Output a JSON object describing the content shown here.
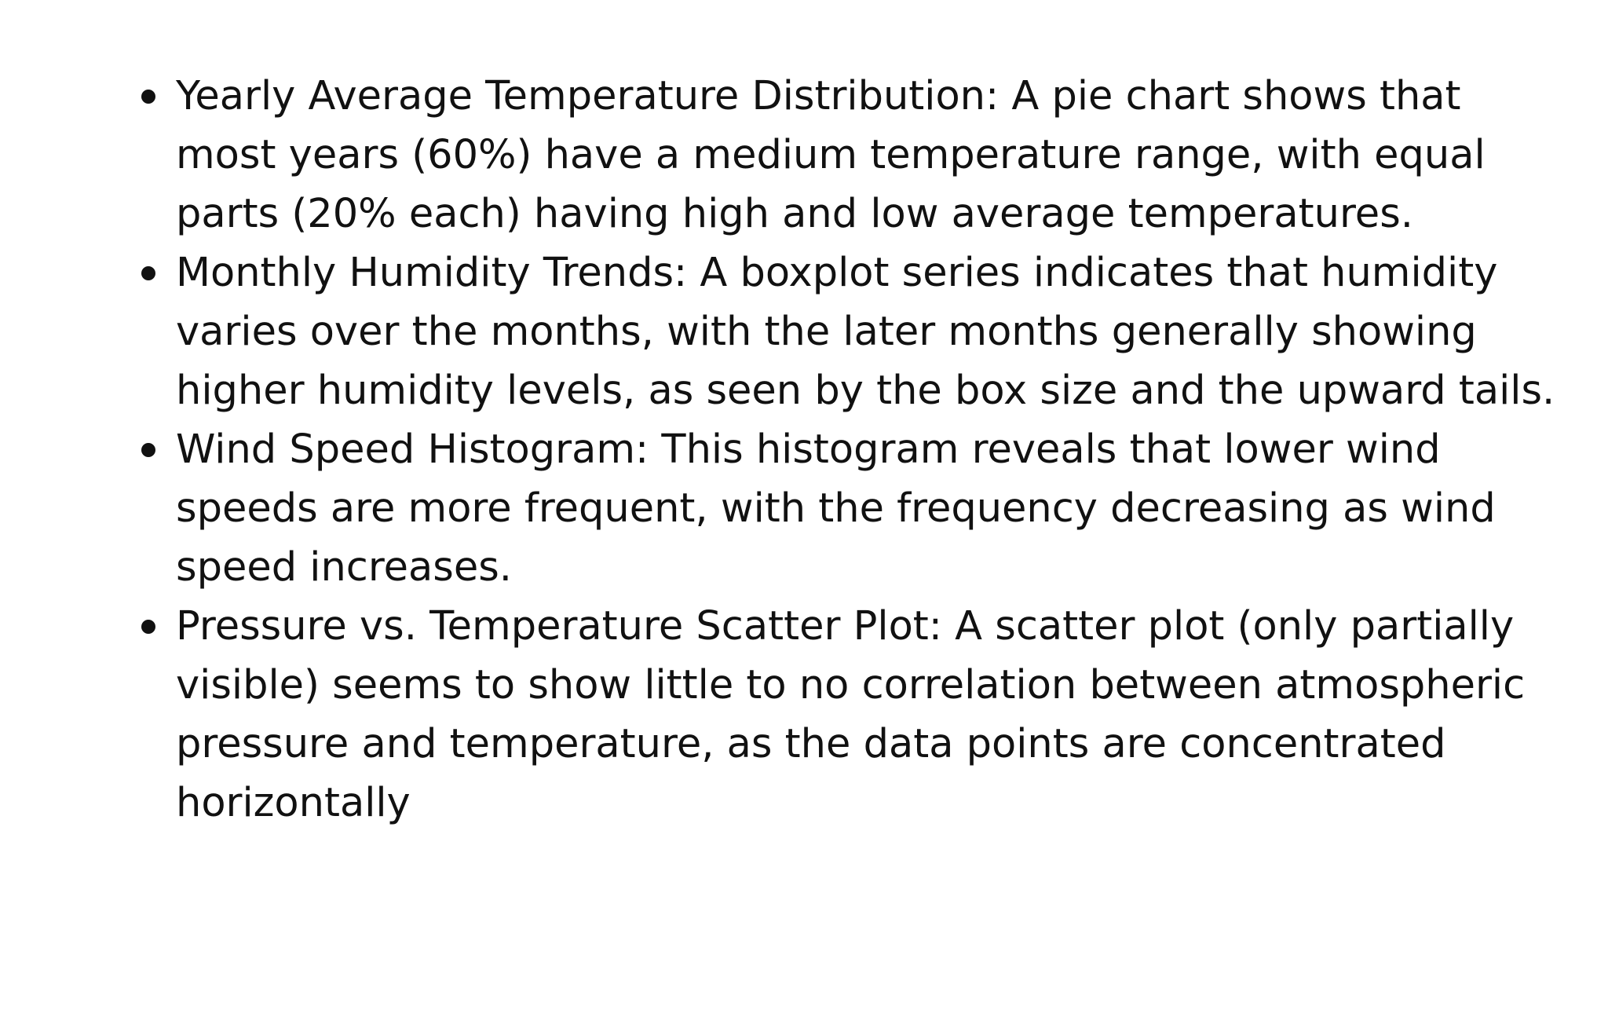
{
  "bullets": [
    {
      "text": "Yearly Average Temperature Distribution: A pie chart shows that most years (60%) have a medium temperature range, with equal parts (20% each) having high and low average temperatures."
    },
    {
      "text": "Monthly Humidity Trends: A boxplot series indicates that humidity varies over the months, with the later months generally showing higher humidity levels, as seen by the box size and the upward tails."
    },
    {
      "text": "Wind Speed Histogram: This histogram reveals that lower wind speeds are more frequent, with the frequency decreasing as wind speed increases."
    },
    {
      "text": "Pressure vs. Temperature Scatter Plot: A scatter plot (only partially visible) seems to show little to no correlation between atmospheric pressure and temperature, as the data points are concentrated horizontally"
    }
  ]
}
